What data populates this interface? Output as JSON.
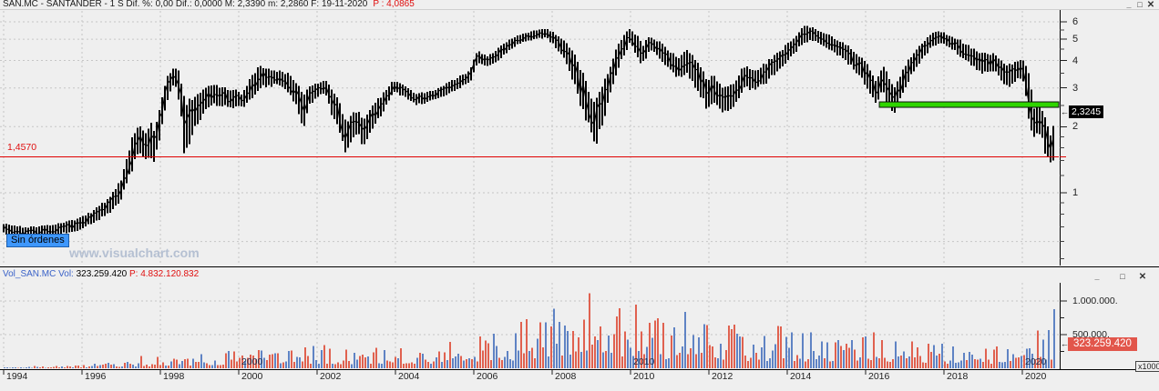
{
  "main_panel": {
    "title_text": "SAN.MC - SANTANDER -  1 S  Dif. %: 0,00  Dif.: 0,0000  M: 2,3390  m: 2,2860  F: 19-11-2020",
    "title_price_label": "P : 4,0865",
    "window_controls": {
      "minimize": "_",
      "maximize": "□",
      "close": "✕"
    },
    "no_orders_label": "Sin órdenes",
    "support_line_label": "1,4570",
    "price_tag": "2,3245",
    "tag_arrow": "←",
    "price_axis_labels": [
      "6",
      "5",
      "4",
      "3",
      "2",
      "1"
    ]
  },
  "volume_panel": {
    "header_symbol": "Vol_SAN.MC  Vol:",
    "header_value": " 323.259.420 ",
    "header_p": " P: 4.832.120.832",
    "window_controls": {
      "minimize": "_",
      "maximize": "□",
      "close": "✕"
    },
    "axis_labels": [
      "1.000.000.",
      "500.000."
    ],
    "axis_values": [
      1000000,
      500000
    ],
    "volume_tag": "323.259.420",
    "tag_arrow": "←",
    "multiplier_label": "x1000",
    "decade_labels": [
      {
        "label": "2000",
        "year": 2000
      },
      {
        "label": "2010",
        "year": 2010
      },
      {
        "label": "2020",
        "year": 2020
      }
    ]
  },
  "x_axis": {
    "year_labels": [
      {
        "label": "1994",
        "year": 1994
      },
      {
        "label": "1996",
        "year": 1996
      },
      {
        "label": "1998",
        "year": 1998
      },
      {
        "label": "2000",
        "year": 2000
      },
      {
        "label": "2002",
        "year": 2002
      },
      {
        "label": "2004",
        "year": 2004
      },
      {
        "label": "2006",
        "year": 2006
      },
      {
        "label": "2008",
        "year": 2008
      },
      {
        "label": "2010",
        "year": 2010
      },
      {
        "label": "2012",
        "year": 2012
      },
      {
        "label": "2014",
        "year": 2014
      },
      {
        "label": "2016",
        "year": 2016
      },
      {
        "label": "2018",
        "year": 2018
      },
      {
        "label": "2020",
        "year": 2020
      }
    ]
  },
  "watermark": "www.visualchart.com",
  "colors": {
    "price_bars": "#000000",
    "support_line": "#e00000",
    "green_line": "#2fd500",
    "volume_down": "#e0614f",
    "volume_up": "#5f83c4",
    "grid": "#c6c6c6",
    "tag_price_bg": "#000000",
    "tag_volume_bg": "#e2564b",
    "no_orders_bg": "#3e97fc"
  },
  "chart_data": [
    {
      "type": "ohlc",
      "title": "SAN.MC - SANTANDER weekly (1 S), log price scale",
      "x_range_years": [
        1994,
        2020.93
      ],
      "y_axis": {
        "scale": "log",
        "ticks": [
          6,
          5,
          4,
          3,
          2,
          1
        ],
        "minor_ticks": [
          0.5,
          0.6,
          0.7,
          0.8,
          0.9,
          1.2,
          1.4,
          1.6,
          1.8,
          2.5,
          3.5,
          4.5,
          5.5
        ],
        "grid_prices": [
          0.6,
          1,
          2,
          3,
          4,
          5,
          6
        ]
      },
      "last_price": 2.3245,
      "support_line_price": 1.457,
      "green_line": {
        "price": 2.52,
        "from_year": 2016.35,
        "to_year": 2020.93
      },
      "seed": 7,
      "series_envelope": [
        [
          1994.0,
          0.66,
          0.72
        ],
        [
          1994.5,
          0.63,
          0.69
        ],
        [
          1995.0,
          0.64,
          0.7
        ],
        [
          1995.5,
          0.66,
          0.72
        ],
        [
          1995.9,
          0.68,
          0.75
        ],
        [
          1996.3,
          0.74,
          0.82
        ],
        [
          1996.7,
          0.82,
          0.93
        ],
        [
          1997.0,
          0.95,
          1.12
        ],
        [
          1997.3,
          1.35,
          1.75
        ],
        [
          1997.45,
          1.62,
          2.0
        ],
        [
          1997.6,
          1.45,
          1.8
        ],
        [
          1997.75,
          1.55,
          2.03
        ],
        [
          1997.85,
          1.41,
          1.85
        ],
        [
          1998.0,
          1.9,
          2.42
        ],
        [
          1998.15,
          2.6,
          3.2
        ],
        [
          1998.35,
          3.25,
          3.67
        ],
        [
          1998.5,
          2.6,
          3.4
        ],
        [
          1998.62,
          1.52,
          2.45
        ],
        [
          1998.8,
          1.95,
          2.6
        ],
        [
          1999.0,
          2.2,
          2.75
        ],
        [
          1999.3,
          2.6,
          3.07
        ],
        [
          1999.6,
          2.55,
          2.95
        ],
        [
          1999.9,
          2.5,
          2.9
        ],
        [
          2000.1,
          2.47,
          2.78
        ],
        [
          2000.35,
          2.8,
          3.4
        ],
        [
          2000.55,
          3.1,
          3.7
        ],
        [
          2000.8,
          3.1,
          3.6
        ],
        [
          2001.0,
          3.2,
          3.55
        ],
        [
          2001.3,
          2.9,
          3.4
        ],
        [
          2001.5,
          2.5,
          3.05
        ],
        [
          2001.65,
          2.02,
          2.65
        ],
        [
          2001.8,
          2.55,
          3.0
        ],
        [
          2002.0,
          2.75,
          3.1
        ],
        [
          2002.2,
          2.9,
          3.2
        ],
        [
          2002.4,
          2.3,
          2.9
        ],
        [
          2002.6,
          1.9,
          2.4
        ],
        [
          2002.75,
          1.53,
          2.0
        ],
        [
          2002.9,
          1.8,
          2.25
        ],
        [
          2003.05,
          1.9,
          2.33
        ],
        [
          2003.17,
          1.66,
          2.05
        ],
        [
          2003.4,
          2.0,
          2.4
        ],
        [
          2003.7,
          2.4,
          2.8
        ],
        [
          2003.95,
          2.9,
          3.2
        ],
        [
          2004.2,
          2.8,
          3.08
        ],
        [
          2004.5,
          2.55,
          2.8
        ],
        [
          2004.8,
          2.6,
          2.85
        ],
        [
          2005.1,
          2.72,
          2.95
        ],
        [
          2005.5,
          2.95,
          3.25
        ],
        [
          2005.9,
          3.2,
          3.55
        ],
        [
          2006.1,
          3.95,
          4.36
        ],
        [
          2006.35,
          3.8,
          4.12
        ],
        [
          2006.7,
          4.15,
          4.6
        ],
        [
          2007.0,
          4.65,
          5.05
        ],
        [
          2007.3,
          4.95,
          5.3
        ],
        [
          2007.6,
          5.05,
          5.45
        ],
        [
          2007.85,
          5.15,
          5.55
        ],
        [
          2008.05,
          4.75,
          5.3
        ],
        [
          2008.25,
          4.35,
          4.95
        ],
        [
          2008.5,
          3.45,
          4.35
        ],
        [
          2008.75,
          2.55,
          3.5
        ],
        [
          2008.95,
          2.1,
          2.75
        ],
        [
          2009.1,
          1.68,
          2.45
        ],
        [
          2009.3,
          2.2,
          2.95
        ],
        [
          2009.55,
          3.1,
          4.0
        ],
        [
          2009.8,
          4.25,
          5.0
        ],
        [
          2010.0,
          4.9,
          5.55
        ],
        [
          2010.15,
          4.35,
          5.15
        ],
        [
          2010.3,
          3.9,
          4.6
        ],
        [
          2010.5,
          4.55,
          5.1
        ],
        [
          2010.75,
          4.2,
          4.8
        ],
        [
          2011.0,
          3.7,
          4.35
        ],
        [
          2011.2,
          3.4,
          4.05
        ],
        [
          2011.45,
          3.6,
          4.4
        ],
        [
          2011.7,
          3.05,
          3.85
        ],
        [
          2011.95,
          2.5,
          3.2
        ],
        [
          2012.15,
          2.65,
          3.3
        ],
        [
          2012.4,
          2.36,
          2.9
        ],
        [
          2012.65,
          2.5,
          3.1
        ],
        [
          2012.9,
          3.1,
          3.7
        ],
        [
          2013.2,
          3.0,
          3.5
        ],
        [
          2013.5,
          3.3,
          3.9
        ],
        [
          2013.8,
          3.7,
          4.3
        ],
        [
          2014.1,
          4.25,
          4.85
        ],
        [
          2014.45,
          4.95,
          5.65
        ],
        [
          2014.7,
          5.0,
          5.55
        ],
        [
          2015.0,
          4.65,
          5.25
        ],
        [
          2015.3,
          4.3,
          4.85
        ],
        [
          2015.6,
          3.9,
          4.5
        ],
        [
          2015.9,
          3.4,
          4.05
        ],
        [
          2016.1,
          2.9,
          3.6
        ],
        [
          2016.25,
          2.6,
          3.15
        ],
        [
          2016.45,
          3.0,
          3.7
        ],
        [
          2016.6,
          2.5,
          3.25
        ],
        [
          2016.75,
          2.42,
          2.95
        ],
        [
          2017.0,
          3.1,
          3.7
        ],
        [
          2017.3,
          3.8,
          4.4
        ],
        [
          2017.6,
          4.5,
          5.1
        ],
        [
          2017.85,
          4.9,
          5.44
        ],
        [
          2018.1,
          4.7,
          5.2
        ],
        [
          2018.4,
          4.3,
          4.9
        ],
        [
          2018.7,
          3.9,
          4.5
        ],
        [
          2019.0,
          3.55,
          4.2
        ],
        [
          2019.3,
          3.65,
          4.2
        ],
        [
          2019.6,
          3.1,
          3.7
        ],
        [
          2019.9,
          3.35,
          3.95
        ],
        [
          2020.05,
          3.3,
          3.9
        ],
        [
          2020.15,
          2.25,
          3.6
        ],
        [
          2020.3,
          1.85,
          2.35
        ],
        [
          2020.45,
          1.95,
          2.5
        ],
        [
          2020.6,
          1.55,
          2.05
        ],
        [
          2020.72,
          1.44,
          1.8
        ],
        [
          2020.82,
          1.49,
          2.1
        ],
        [
          2020.88,
          2.2,
          2.45
        ]
      ]
    },
    {
      "type": "bar",
      "name": "Vol_SAN.MC",
      "units": "x1000",
      "axis_ticks": [
        500000,
        1000000
      ],
      "current_value": 323259.42,
      "p_total": 4832120832,
      "seed": 11,
      "envelope": [
        [
          1994,
          28000
        ],
        [
          1995,
          34000
        ],
        [
          1996,
          50000
        ],
        [
          1997,
          110000
        ],
        [
          1998,
          180000
        ],
        [
          1999,
          210000
        ],
        [
          2000,
          280000
        ],
        [
          2001,
          330000
        ],
        [
          2002,
          380000
        ],
        [
          2003,
          320000
        ],
        [
          2004,
          320000
        ],
        [
          2005,
          380000
        ],
        [
          2006,
          480000
        ],
        [
          2007,
          650000
        ],
        [
          2008,
          950000
        ],
        [
          2008.8,
          1250000
        ],
        [
          2009.2,
          1100000
        ],
        [
          2010,
          850000
        ],
        [
          2011,
          700000
        ],
        [
          2012,
          760000
        ],
        [
          2013,
          600000
        ],
        [
          2014,
          600000
        ],
        [
          2015,
          500000
        ],
        [
          2016,
          560000
        ],
        [
          2017,
          450000
        ],
        [
          2018,
          390000
        ],
        [
          2019,
          330000
        ],
        [
          2020,
          520000
        ],
        [
          2020.9,
          760000
        ]
      ]
    }
  ]
}
